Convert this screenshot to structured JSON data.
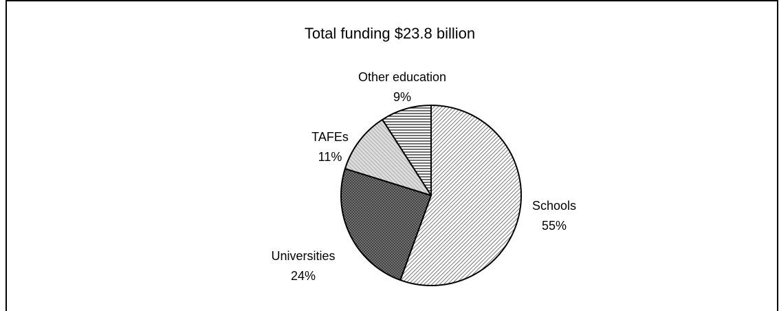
{
  "chart_data": {
    "type": "pie",
    "title": "Total funding $23.8 billion",
    "slices": [
      {
        "label": "Schools",
        "percent_label": "55%",
        "value": 55,
        "pattern": "diagonal-fine"
      },
      {
        "label": "Universities",
        "percent_label": "24%",
        "value": 24,
        "pattern": "crosshatch"
      },
      {
        "label": "TAFEs",
        "percent_label": "11%",
        "value": 11,
        "pattern": "diagonal-light"
      },
      {
        "label": "Other education",
        "percent_label": "9%",
        "value": 9,
        "pattern": "horizontal"
      }
    ],
    "start_angle_deg": 0,
    "direction": "clockwise",
    "legend": "none"
  }
}
